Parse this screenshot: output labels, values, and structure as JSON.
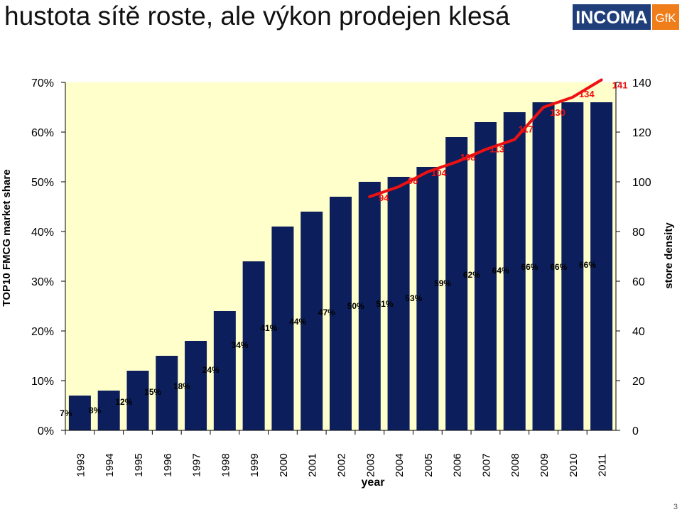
{
  "slide": {
    "title": "hustota sítě roste, ale výkon prodejen klesá",
    "page_number": "3"
  },
  "logo": {
    "primary": "INCOMA",
    "secondary": "GfK",
    "primary_color": "#1f3e7a",
    "secondary_color": "#ef7d1a"
  },
  "colors": {
    "plot_background": "#ffffcc",
    "bar": "#0c1f5c",
    "line": "#ee1111",
    "line_label": "#ee1111"
  },
  "chart_data": {
    "type": "bar",
    "xlabel": "year",
    "ylabel": "TOP10 FMCG market share",
    "y2label": "store density",
    "ylim": [
      0,
      70
    ],
    "y2lim": [
      0,
      140
    ],
    "grid": false,
    "categories": [
      "1993",
      "1994",
      "1995",
      "1996",
      "1997",
      "1998",
      "1999",
      "2000",
      "2001",
      "2002",
      "2003",
      "2004",
      "2005",
      "2006",
      "2007",
      "2008",
      "2009",
      "2010",
      "2011"
    ],
    "y_ticks": [
      "0%",
      "10%",
      "20%",
      "30%",
      "40%",
      "50%",
      "60%",
      "70%"
    ],
    "y2_ticks": [
      "0",
      "20",
      "40",
      "60",
      "80",
      "100",
      "120",
      "140"
    ],
    "series": [
      {
        "axis": "left",
        "kind": "bar",
        "values": [
          7,
          8,
          12,
          15,
          18,
          24,
          34,
          41,
          44,
          47,
          50,
          51,
          53,
          59,
          62,
          64,
          66,
          66,
          66
        ],
        "labels": [
          "7%",
          "8%",
          "12%",
          "15%",
          "18%",
          "24%",
          "34%",
          "41%",
          "44%",
          "47%",
          "50%",
          "51%",
          "53%",
          "59%",
          "62%",
          "64%",
          "66%",
          "66%",
          "66%"
        ]
      },
      {
        "axis": "right",
        "kind": "line",
        "x": [
          "2003",
          "2004",
          "2005",
          "2006",
          "2007",
          "2008",
          "2009",
          "2010",
          "2011"
        ],
        "values": [
          94,
          98,
          104,
          108,
          113,
          117,
          130,
          134,
          141
        ],
        "labels": [
          "94",
          "98",
          "104",
          "108",
          "113",
          "117",
          "130",
          "134",
          "141"
        ]
      }
    ]
  }
}
